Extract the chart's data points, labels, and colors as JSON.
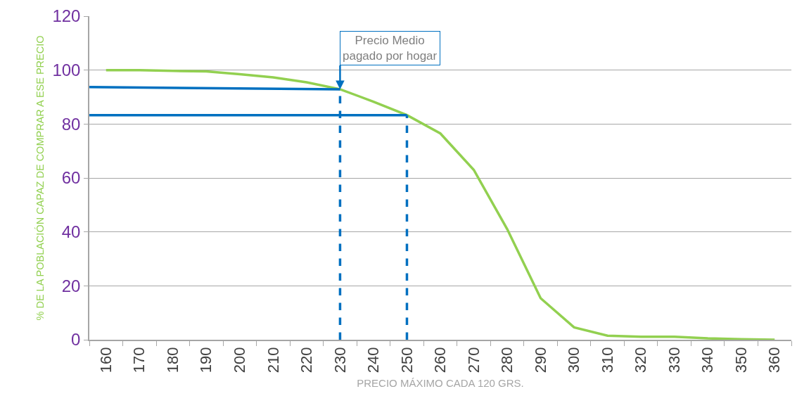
{
  "chart_data": {
    "type": "line",
    "xlabel": "PRECIO MÁXIMO CADA 120 GRS.",
    "ylabel": "% DE LA POBLACIÓN CAPAZ DE COMPRAR A ESE PRECIO",
    "x": [
      160,
      170,
      180,
      190,
      200,
      210,
      220,
      230,
      240,
      250,
      260,
      270,
      280,
      290,
      300,
      310,
      320,
      330,
      340,
      350,
      360
    ],
    "series": [
      {
        "color": "#92d050",
        "values": [
          100,
          100,
          99.7,
          99.5,
          98.5,
          97.3,
          95.5,
          92.9,
          88.3,
          83.3,
          76.5,
          63,
          41,
          15.4,
          4.6,
          1.5,
          1.1,
          1.1,
          0.5,
          0.2,
          0
        ]
      },
      {
        "color": "#0070c0",
        "x": [
          155,
          230
        ],
        "values": [
          93.7,
          92.9
        ]
      },
      {
        "color": "#0070c0",
        "x": [
          155,
          250
        ],
        "values": [
          83.3,
          83.3
        ]
      },
      {
        "color": "#0070c0",
        "x": [
          230,
          230
        ],
        "values": [
          0,
          92.9
        ],
        "line_style": "dashed"
      },
      {
        "color": "#0070c0",
        "x": [
          250,
          250
        ],
        "values": [
          0,
          83.3
        ],
        "line_style": "dashed"
      }
    ],
    "xlim": [
      155,
      365
    ],
    "xticks": [
      160,
      170,
      180,
      190,
      200,
      210,
      220,
      230,
      240,
      250,
      260,
      270,
      280,
      290,
      300,
      310,
      320,
      330,
      340,
      350,
      360,
      {
        "value": 155,
        "label": null
      },
      {
        "value": 165,
        "label": null
      },
      {
        "value": 175,
        "label": null
      },
      {
        "value": 185,
        "label": null
      },
      {
        "value": 195,
        "label": null
      },
      {
        "value": 205,
        "label": null
      },
      {
        "value": 215,
        "label": null
      },
      {
        "value": 225,
        "label": null
      },
      {
        "value": 235,
        "label": null
      },
      {
        "value": 245,
        "label": null
      },
      {
        "value": 255,
        "label": null
      },
      {
        "value": 265,
        "label": null
      },
      {
        "value": 275,
        "label": null
      },
      {
        "value": 285,
        "label": null
      },
      {
        "value": 295,
        "label": null
      },
      {
        "value": 305,
        "label": null
      },
      {
        "value": 315,
        "label": null
      },
      {
        "value": 325,
        "label": null
      },
      {
        "value": 335,
        "label": null
      },
      {
        "value": 345,
        "label": null
      },
      {
        "value": 355,
        "label": null
      },
      {
        "value": 365,
        "label": null
      }
    ],
    "ylim": [
      0,
      120
    ],
    "yticks": [
      0,
      20,
      40,
      60,
      80,
      100,
      120
    ],
    "grid": "y",
    "marker": "none",
    "line_style": "solid",
    "annotations": [
      {
        "text": "Precio Medio\npagado por hogar",
        "x": 230,
        "y": 92.9
      }
    ]
  }
}
